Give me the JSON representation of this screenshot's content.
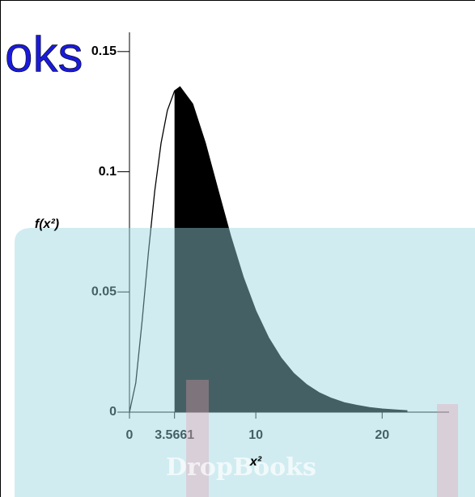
{
  "chart_data": {
    "type": "line",
    "x_label": "x²",
    "y_label": "f(x²)",
    "x": [
      0,
      0.5,
      1,
      1.5,
      2,
      2.5,
      3,
      3.5661,
      4,
      5,
      6,
      7,
      8,
      9,
      10,
      11,
      12,
      13,
      14,
      15,
      16,
      17,
      18,
      19,
      20,
      21,
      22
    ],
    "values": [
      0,
      0.0122,
      0.0379,
      0.0664,
      0.092,
      0.1119,
      0.1255,
      0.1336,
      0.1353,
      0.1282,
      0.112,
      0.0925,
      0.0733,
      0.0562,
      0.0421,
      0.031,
      0.0225,
      0.0161,
      0.0115,
      0.0081,
      0.0057,
      0.0039,
      0.0028,
      0.0019,
      0.0013,
      0.0009,
      0.0006
    ],
    "color": "#000000",
    "shade_from": 3.5661,
    "shade_color": "#000000",
    "xlim": [
      0,
      25.3
    ],
    "ylim": [
      0,
      0.158
    ],
    "xticks": [
      0,
      3.5661,
      10,
      20
    ],
    "yticks": [
      0,
      0.05,
      0.1,
      0.15
    ],
    "watermark": "DropBooks",
    "watermark_fragment": "oks"
  }
}
